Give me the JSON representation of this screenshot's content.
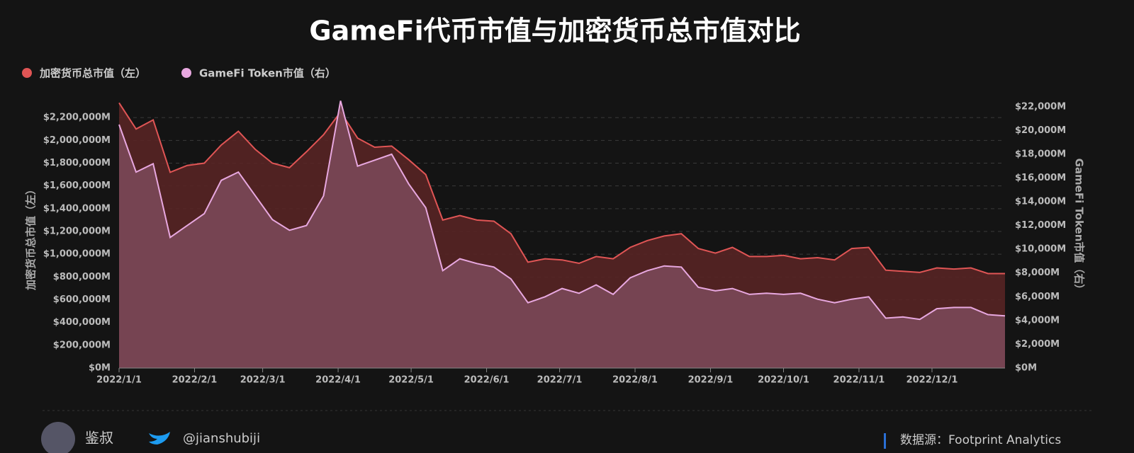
{
  "chart_data": {
    "type": "area",
    "title": "GameFi代币市值与加密货币总市值对比",
    "ylabel": "加密货币总市值（左）",
    "y2label": "GameFi Token市值（右）",
    "x": [
      "2022/1/1",
      "2022/1/8",
      "2022/1/15",
      "2022/1/22",
      "2022/1/29",
      "2022/2/5",
      "2022/2/12",
      "2022/2/19",
      "2022/2/26",
      "2022/3/5",
      "2022/3/12",
      "2022/3/19",
      "2022/3/26",
      "2022/4/2",
      "2022/4/9",
      "2022/4/16",
      "2022/4/23",
      "2022/4/30",
      "2022/5/7",
      "2022/5/14",
      "2022/5/21",
      "2022/5/28",
      "2022/6/4",
      "2022/6/11",
      "2022/6/18",
      "2022/6/25",
      "2022/7/2",
      "2022/7/9",
      "2022/7/16",
      "2022/7/23",
      "2022/7/30",
      "2022/8/6",
      "2022/8/13",
      "2022/8/20",
      "2022/8/27",
      "2022/9/3",
      "2022/9/10",
      "2022/9/17",
      "2022/9/24",
      "2022/10/1",
      "2022/10/8",
      "2022/10/15",
      "2022/10/22",
      "2022/10/29",
      "2022/11/5",
      "2022/11/12",
      "2022/11/19",
      "2022/11/26",
      "2022/12/3",
      "2022/12/10",
      "2022/12/17",
      "2022/12/24",
      "2022/12/31"
    ],
    "xlim": [
      "2022/1/1",
      "2022/12/31"
    ],
    "xticks": [
      "2022/1/1",
      "2022/2/1",
      "2022/3/1",
      "2022/4/1",
      "2022/5/1",
      "2022/6/1",
      "2022/7/1",
      "2022/8/1",
      "2022/9/1",
      "2022/10/1",
      "2022/11/1",
      "2022/12/1"
    ],
    "series": [
      {
        "name": "加密货币总市值（左）",
        "color": "#e05555",
        "fill": "#5a2424",
        "values": [
          2330000,
          2100000,
          2180000,
          1720000,
          1780000,
          1800000,
          1960000,
          2080000,
          1920000,
          1800000,
          1760000,
          1900000,
          2050000,
          2250000,
          2020000,
          1940000,
          1950000,
          1830000,
          1700000,
          1300000,
          1340000,
          1300000,
          1290000,
          1180000,
          930000,
          960000,
          950000,
          920000,
          980000,
          960000,
          1060000,
          1120000,
          1160000,
          1180000,
          1050000,
          1010000,
          1060000,
          980000,
          980000,
          990000,
          960000,
          970000,
          950000,
          1050000,
          1060000,
          860000,
          850000,
          840000,
          880000,
          870000,
          880000,
          830000,
          830000
        ]
      },
      {
        "name": "GameFi Token市值（右）",
        "color": "#e8a8e0",
        "fill": "#7a4858",
        "axis": "y2",
        "values": [
          20500,
          16500,
          17200,
          11000,
          12000,
          13000,
          15800,
          16500,
          14500,
          12500,
          11600,
          12000,
          14500,
          22500,
          17000,
          17500,
          18000,
          15500,
          13500,
          8200,
          9200,
          8800,
          8500,
          7500,
          5500,
          6000,
          6700,
          6300,
          7000,
          6200,
          7600,
          8200,
          8600,
          8500,
          6800,
          6500,
          6700,
          6200,
          6300,
          6200,
          6300,
          5800,
          5500,
          5800,
          6000,
          4200,
          4300,
          4100,
          5000,
          5100,
          5100,
          4500,
          4400
        ]
      }
    ],
    "ylim": [
      0,
      2400000
    ],
    "yticks": [
      {
        "value": 0,
        "label": "$0M"
      },
      {
        "value": 200000,
        "label": "$200,000M"
      },
      {
        "value": 400000,
        "label": "$400,000M"
      },
      {
        "value": 600000,
        "label": "$600,000M"
      },
      {
        "value": 800000,
        "label": "$800,000M"
      },
      {
        "value": 1000000,
        "label": "$1,000,000M"
      },
      {
        "value": 1200000,
        "label": "$1,200,000M"
      },
      {
        "value": 1400000,
        "label": "$1,400,000M"
      },
      {
        "value": 1600000,
        "label": "$1,600,000M"
      },
      {
        "value": 1800000,
        "label": "$1,800,000M"
      },
      {
        "value": 2000000,
        "label": "$2,000,000M"
      },
      {
        "value": 2200000,
        "label": "$2,200,000M"
      }
    ],
    "y2lim": [
      0,
      23000
    ],
    "y2ticks": [
      {
        "value": 0,
        "label": "$0M"
      },
      {
        "value": 2000,
        "label": "$2,000M"
      },
      {
        "value": 4000,
        "label": "$4,000M"
      },
      {
        "value": 6000,
        "label": "$6,000M"
      },
      {
        "value": 8000,
        "label": "$8,000M"
      },
      {
        "value": 10000,
        "label": "$10,000M"
      },
      {
        "value": 12000,
        "label": "$12,000M"
      },
      {
        "value": 14000,
        "label": "$14,000M"
      },
      {
        "value": 16000,
        "label": "$16,000M"
      },
      {
        "value": 18000,
        "label": "$18,000M"
      },
      {
        "value": 20000,
        "label": "$20,000M"
      },
      {
        "value": 22000,
        "label": "$22,000M"
      }
    ],
    "grid": true
  },
  "footer": {
    "author": "鉴叔",
    "handle": "@jianshubiji",
    "source": "数据源：Footprint Analytics"
  }
}
